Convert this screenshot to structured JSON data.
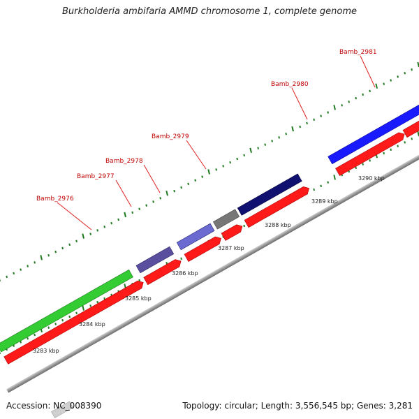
{
  "title": "Burkholderia ambifaria AMMD chromosome 1, complete genome",
  "footer": {
    "accession": "Accession: NC_008390",
    "summary": "Topology: circular; Length: 3,556,545 bp; Genes: 3,281"
  },
  "colors": {
    "background": "#ffffff",
    "backbone": "#999999",
    "cds": "#ff0000",
    "gene_label": "#c00000",
    "tick": "#1f7a1f",
    "gene_green": "#33cc33",
    "gene_purple": "#5a4f9e",
    "gene_blue_light": "#6a6ad0",
    "gene_gray": "#777777",
    "gene_navy": "#101070",
    "gene_blue": "#1a1aff"
  },
  "genes": [
    {
      "label": "Bamb_2976"
    },
    {
      "label": "Bamb_2977"
    },
    {
      "label": "Bamb_2978"
    },
    {
      "label": "Bamb_2979"
    },
    {
      "label": "Bamb_2980"
    },
    {
      "label": "Bamb_2981"
    }
  ],
  "ticks": [
    {
      "label": "3283 kbp"
    },
    {
      "label": "3284 kbp"
    },
    {
      "label": "3285 kbp"
    },
    {
      "label": "3286 kbp"
    },
    {
      "label": "3287 kbp"
    },
    {
      "label": "3288 kbp"
    },
    {
      "label": "3289 kbp"
    },
    {
      "label": "3290 kbp"
    }
  ]
}
